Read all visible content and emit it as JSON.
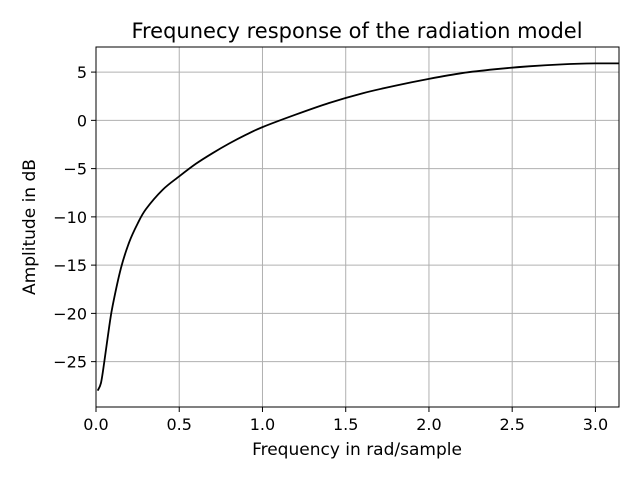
{
  "chart_data": {
    "type": "line",
    "title": "Frequnecy response of the radiation model",
    "xlabel": "Frequency in rad/sample",
    "ylabel": "Amplitude in dB",
    "xlim": [
      0,
      3.14159
    ],
    "ylim": [
      -29.7,
      7.6
    ],
    "xticks": [
      0.0,
      0.5,
      1.0,
      1.5,
      2.0,
      2.5,
      3.0
    ],
    "xtick_labels": [
      "0.0",
      "0.5",
      "1.0",
      "1.5",
      "2.0",
      "2.5",
      "3.0"
    ],
    "yticks": [
      5,
      0,
      -5,
      -10,
      -15,
      -20,
      -25
    ],
    "ytick_labels": [
      "5",
      "0",
      "−5",
      "−10",
      "−15",
      "−20",
      "−25"
    ],
    "grid": true,
    "line_color": "#000000",
    "grid_color": "#b0b0b0",
    "series": [
      {
        "x": [
          0.01,
          0.03,
          0.05,
          0.08,
          0.1,
          0.15,
          0.2,
          0.25,
          0.3,
          0.4,
          0.5,
          0.6,
          0.7,
          0.8,
          0.9,
          1.0,
          1.2,
          1.4,
          1.6,
          1.8,
          2.0,
          2.2,
          2.4,
          2.6,
          2.8,
          3.0,
          3.14
        ],
        "y": [
          -28.0,
          -27.2,
          -25.0,
          -21.3,
          -19.2,
          -15.3,
          -12.6,
          -10.7,
          -9.2,
          -7.2,
          -5.8,
          -4.5,
          -3.4,
          -2.4,
          -1.5,
          -0.7,
          0.6,
          1.8,
          2.8,
          3.6,
          4.3,
          4.9,
          5.3,
          5.6,
          5.8,
          5.9,
          5.9
        ]
      }
    ]
  }
}
